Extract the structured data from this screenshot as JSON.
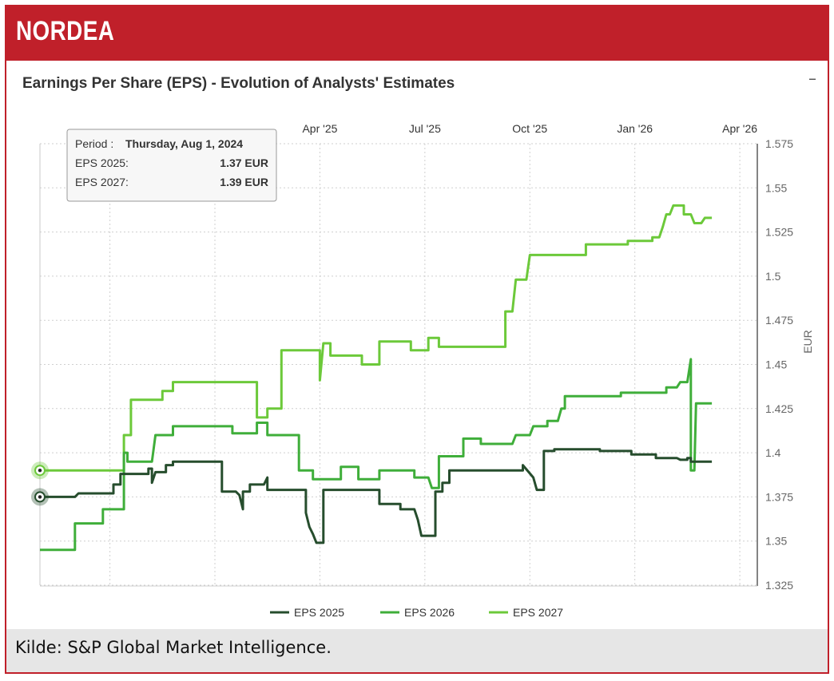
{
  "header": {
    "title": "NORDEA"
  },
  "chart": {
    "title": "Earnings Per Share (EPS) - Evolution of Analysts' Estimates",
    "collapse_symbol": "–"
  },
  "tooltip": {
    "period_label": "Period :",
    "period_value": "Thursday, Aug 1, 2024",
    "rows": [
      {
        "label": "EPS 2025:",
        "value": "1.37 EUR"
      },
      {
        "label": "EPS 2027:",
        "value": "1.39 EUR"
      }
    ]
  },
  "footer": {
    "source": "Kilde:  S&P Global Market Intelligence."
  },
  "chart_data": {
    "type": "line",
    "title": "Earnings Per Share (EPS) - Evolution of Analysts' Estimates",
    "xlabel": "",
    "ylabel": "EUR",
    "x_range": [
      0,
      20.5
    ],
    "x_unit": "months since Aug 1, 2024",
    "ylim": [
      1.325,
      1.575
    ],
    "grid": true,
    "x_ticks": [
      {
        "x": 8,
        "label": "Apr '25"
      },
      {
        "x": 11,
        "label": "Jul '25"
      },
      {
        "x": 14,
        "label": "Oct '25"
      },
      {
        "x": 17,
        "label": "Jan '26"
      },
      {
        "x": 20,
        "label": "Apr '26"
      }
    ],
    "y_ticks": [
      1.325,
      1.35,
      1.375,
      1.4,
      1.425,
      1.45,
      1.475,
      1.5,
      1.525,
      1.55,
      1.575
    ],
    "legend": [
      "EPS 2025",
      "EPS 2026",
      "EPS 2027"
    ],
    "legend_position": "bottom",
    "series": [
      {
        "name": "EPS 2025",
        "color": "#264d2d",
        "points": [
          [
            0,
            1.375
          ],
          [
            1.0,
            1.375
          ],
          [
            1.1,
            1.377
          ],
          [
            2.1,
            1.377
          ],
          [
            2.1,
            1.382
          ],
          [
            2.3,
            1.382
          ],
          [
            2.3,
            1.388
          ],
          [
            3.1,
            1.388
          ],
          [
            3.1,
            1.391
          ],
          [
            3.2,
            1.391
          ],
          [
            3.2,
            1.383
          ],
          [
            3.3,
            1.389
          ],
          [
            3.6,
            1.389
          ],
          [
            3.6,
            1.393
          ],
          [
            3.8,
            1.393
          ],
          [
            3.8,
            1.395
          ],
          [
            5.2,
            1.395
          ],
          [
            5.2,
            1.378
          ],
          [
            5.6,
            1.378
          ],
          [
            5.7,
            1.376
          ],
          [
            5.8,
            1.368
          ],
          [
            5.8,
            1.378
          ],
          [
            6.0,
            1.378
          ],
          [
            6.0,
            1.382
          ],
          [
            6.4,
            1.382
          ],
          [
            6.5,
            1.386
          ],
          [
            6.5,
            1.379
          ],
          [
            7.6,
            1.379
          ],
          [
            7.6,
            1.366
          ],
          [
            7.7,
            1.358
          ],
          [
            7.8,
            1.354
          ],
          [
            7.9,
            1.349
          ],
          [
            8.1,
            1.349
          ],
          [
            8.1,
            1.379
          ],
          [
            9.7,
            1.379
          ],
          [
            9.7,
            1.371
          ],
          [
            10.3,
            1.371
          ],
          [
            10.3,
            1.368
          ],
          [
            10.7,
            1.368
          ],
          [
            10.8,
            1.362
          ],
          [
            10.9,
            1.353
          ],
          [
            11.3,
            1.353
          ],
          [
            11.3,
            1.378
          ],
          [
            11.5,
            1.378
          ],
          [
            11.5,
            1.383
          ],
          [
            11.7,
            1.383
          ],
          [
            11.7,
            1.39
          ],
          [
            13.8,
            1.39
          ],
          [
            13.8,
            1.393
          ],
          [
            14.1,
            1.386
          ],
          [
            14.2,
            1.379
          ],
          [
            14.4,
            1.379
          ],
          [
            14.4,
            1.401
          ],
          [
            14.7,
            1.401
          ],
          [
            14.7,
            1.402
          ],
          [
            16.0,
            1.402
          ],
          [
            16.0,
            1.401
          ],
          [
            16.9,
            1.401
          ],
          [
            16.9,
            1.399
          ],
          [
            17.6,
            1.399
          ],
          [
            17.6,
            1.397
          ],
          [
            18.2,
            1.397
          ],
          [
            18.3,
            1.396
          ],
          [
            18.5,
            1.396
          ],
          [
            18.5,
            1.397
          ],
          [
            18.6,
            1.397
          ],
          [
            18.6,
            1.395
          ],
          [
            19.2,
            1.395
          ]
        ]
      },
      {
        "name": "EPS 2026",
        "color": "#3fae3a",
        "points": [
          [
            0,
            1.345
          ],
          [
            1.0,
            1.345
          ],
          [
            1.0,
            1.36
          ],
          [
            1.8,
            1.36
          ],
          [
            1.8,
            1.368
          ],
          [
            2.4,
            1.368
          ],
          [
            2.4,
            1.4
          ],
          [
            2.5,
            1.4
          ],
          [
            2.5,
            1.395
          ],
          [
            3.2,
            1.395
          ],
          [
            3.3,
            1.41
          ],
          [
            3.8,
            1.41
          ],
          [
            3.8,
            1.415
          ],
          [
            5.5,
            1.415
          ],
          [
            5.5,
            1.411
          ],
          [
            6.2,
            1.411
          ],
          [
            6.2,
            1.417
          ],
          [
            6.5,
            1.417
          ],
          [
            6.5,
            1.41
          ],
          [
            7.4,
            1.41
          ],
          [
            7.4,
            1.39
          ],
          [
            7.8,
            1.39
          ],
          [
            7.8,
            1.385
          ],
          [
            8.6,
            1.385
          ],
          [
            8.6,
            1.392
          ],
          [
            9.1,
            1.392
          ],
          [
            9.1,
            1.385
          ],
          [
            9.7,
            1.385
          ],
          [
            9.7,
            1.39
          ],
          [
            10.7,
            1.39
          ],
          [
            10.7,
            1.386
          ],
          [
            11.1,
            1.386
          ],
          [
            11.2,
            1.38
          ],
          [
            11.4,
            1.38
          ],
          [
            11.4,
            1.398
          ],
          [
            12.1,
            1.398
          ],
          [
            12.1,
            1.408
          ],
          [
            12.6,
            1.408
          ],
          [
            12.6,
            1.405
          ],
          [
            13.5,
            1.405
          ],
          [
            13.6,
            1.41
          ],
          [
            14.0,
            1.41
          ],
          [
            14.1,
            1.415
          ],
          [
            14.5,
            1.415
          ],
          [
            14.5,
            1.418
          ],
          [
            14.8,
            1.418
          ],
          [
            14.9,
            1.425
          ],
          [
            15.0,
            1.425
          ],
          [
            15.0,
            1.432
          ],
          [
            16.6,
            1.432
          ],
          [
            16.6,
            1.434
          ],
          [
            17.9,
            1.434
          ],
          [
            17.9,
            1.437
          ],
          [
            18.2,
            1.437
          ],
          [
            18.3,
            1.44
          ],
          [
            18.5,
            1.44
          ],
          [
            18.6,
            1.453
          ],
          [
            18.6,
            1.39
          ],
          [
            18.7,
            1.39
          ],
          [
            18.75,
            1.428
          ],
          [
            19.2,
            1.428
          ]
        ]
      },
      {
        "name": "EPS 2027",
        "color": "#6cc93a",
        "points": [
          [
            0,
            1.39
          ],
          [
            2.4,
            1.39
          ],
          [
            2.4,
            1.41
          ],
          [
            2.6,
            1.41
          ],
          [
            2.6,
            1.43
          ],
          [
            3.5,
            1.43
          ],
          [
            3.5,
            1.435
          ],
          [
            3.8,
            1.435
          ],
          [
            3.8,
            1.44
          ],
          [
            6.2,
            1.44
          ],
          [
            6.2,
            1.42
          ],
          [
            6.5,
            1.42
          ],
          [
            6.5,
            1.425
          ],
          [
            6.9,
            1.425
          ],
          [
            6.9,
            1.458
          ],
          [
            8.0,
            1.458
          ],
          [
            8.0,
            1.441
          ],
          [
            8.1,
            1.462
          ],
          [
            8.3,
            1.462
          ],
          [
            8.3,
            1.455
          ],
          [
            9.2,
            1.455
          ],
          [
            9.2,
            1.45
          ],
          [
            9.7,
            1.45
          ],
          [
            9.7,
            1.463
          ],
          [
            10.6,
            1.463
          ],
          [
            10.6,
            1.458
          ],
          [
            11.1,
            1.458
          ],
          [
            11.1,
            1.465
          ],
          [
            11.4,
            1.465
          ],
          [
            11.4,
            1.46
          ],
          [
            13.3,
            1.46
          ],
          [
            13.3,
            1.48
          ],
          [
            13.5,
            1.48
          ],
          [
            13.6,
            1.498
          ],
          [
            13.9,
            1.498
          ],
          [
            14.0,
            1.512
          ],
          [
            15.6,
            1.512
          ],
          [
            15.6,
            1.518
          ],
          [
            16.8,
            1.518
          ],
          [
            16.8,
            1.52
          ],
          [
            17.5,
            1.52
          ],
          [
            17.5,
            1.522
          ],
          [
            17.7,
            1.522
          ],
          [
            17.8,
            1.528
          ],
          [
            17.9,
            1.535
          ],
          [
            18.0,
            1.535
          ],
          [
            18.1,
            1.54
          ],
          [
            18.4,
            1.54
          ],
          [
            18.4,
            1.535
          ],
          [
            18.6,
            1.535
          ],
          [
            18.7,
            1.53
          ],
          [
            18.9,
            1.53
          ],
          [
            19.0,
            1.533
          ],
          [
            19.2,
            1.533
          ]
        ]
      }
    ],
    "tooltip_markers": [
      {
        "series": "EPS 2027",
        "x": 0,
        "y": 1.39
      },
      {
        "series": "EPS 2025",
        "x": 0,
        "y": 1.375
      }
    ]
  }
}
